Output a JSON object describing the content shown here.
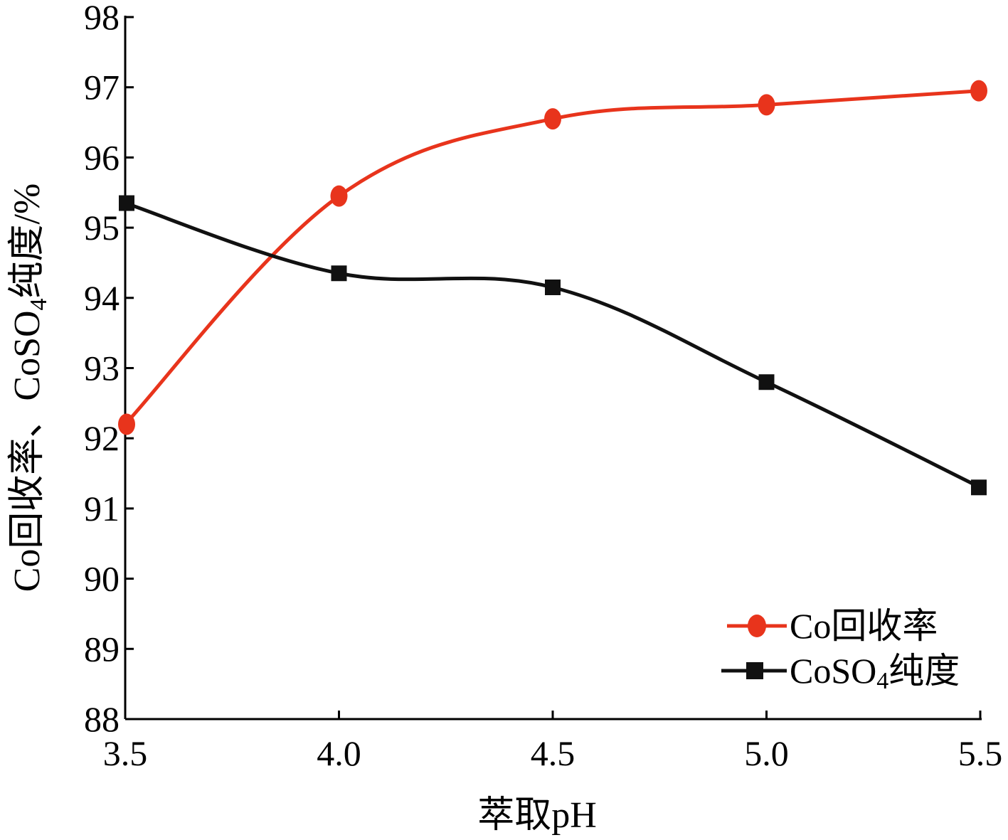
{
  "chart_data": {
    "type": "line",
    "title": "",
    "xlabel": "萃取pH",
    "ylabel_main": "Co回收率、CoSO",
    "ylabel_sub": "4",
    "ylabel_tail": "纯度/%",
    "x": [
      3.5,
      4.0,
      4.5,
      5.0,
      5.5
    ],
    "x_ticks": [
      "3.5",
      "4.0",
      "4.5",
      "5.0",
      "5.5"
    ],
    "xlim": [
      3.5,
      5.5
    ],
    "ylim": [
      88,
      98
    ],
    "y_ticks": [
      "88",
      "89",
      "90",
      "91",
      "92",
      "93",
      "94",
      "95",
      "96",
      "97",
      "98"
    ],
    "grid": false,
    "legend_position": "bottom-right",
    "series": [
      {
        "name": "Co回收率",
        "legend_main": "Co回收率",
        "legend_sub": "",
        "legend_tail": "",
        "marker": "circle",
        "color": "#e8341c",
        "values": [
          92.2,
          95.45,
          96.55,
          96.75,
          96.95
        ]
      },
      {
        "name": "CoSO4纯度",
        "legend_main": "CoSO",
        "legend_sub": "4",
        "legend_tail": "纯度",
        "marker": "square",
        "color": "#111111",
        "values": [
          95.35,
          94.35,
          94.15,
          92.8,
          91.3
        ]
      }
    ]
  }
}
